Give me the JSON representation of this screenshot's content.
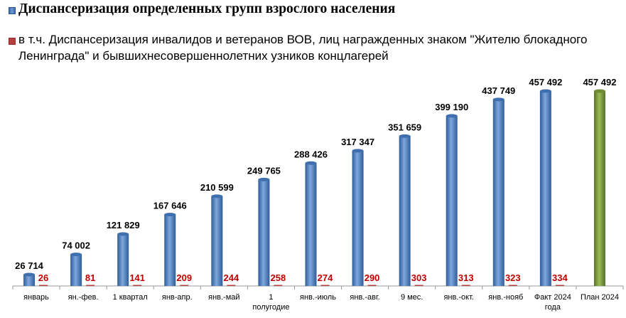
{
  "chart_data": {
    "type": "bar",
    "categories": [
      "январь",
      "ян.-фев.",
      "1 квартал",
      "янв-апр.",
      "янв.-май",
      "1 полугодие",
      "янв.-июль",
      "янв.-авг.",
      "9 мес.",
      "янв.-окт.",
      "янв.-нояб",
      "Факт 2024 года",
      "План 2024"
    ],
    "series": [
      {
        "name": "Диспансеризация определенных групп взрослого населения",
        "values": [
          26714,
          74002,
          121829,
          167646,
          210599,
          249765,
          288426,
          317347,
          351659,
          399190,
          437749,
          457492,
          457492
        ],
        "labels": [
          "26 714",
          "74 002",
          "121 829",
          "167 646",
          "210 599",
          "249 765",
          "288 426",
          "317 347",
          "351 659",
          "399 190",
          "437 749",
          "457 492",
          "457 492"
        ],
        "color": "#4a7bbf",
        "highlight_color": "#7a9a3a"
      },
      {
        "name": "в т.ч. Диспансеризация инвалидов и ветеранов ВОВ, лиц награжденных знаком \"Жителю блокадного Ленинграда\" и бывшихнесовершеннолетних  узников концлагерей",
        "values": [
          26,
          81,
          141,
          209,
          244,
          258,
          274,
          290,
          303,
          313,
          323,
          334,
          null
        ],
        "labels": [
          "26",
          "81",
          "141",
          "209",
          "244",
          "258",
          "274",
          "290",
          "303",
          "313",
          "323",
          "334",
          ""
        ],
        "color": "#b73e3e"
      }
    ],
    "tick_labels": [
      [
        "январь"
      ],
      [
        "ян.-фев."
      ],
      [
        "1 квартал"
      ],
      [
        "янв-апр."
      ],
      [
        "янв.-май"
      ],
      [
        "1",
        "полугодие"
      ],
      [
        "янв.-июль"
      ],
      [
        "янв.-авг."
      ],
      [
        "9 мес."
      ],
      [
        "янв.-окт."
      ],
      [
        "янв.-нояб"
      ],
      [
        "Факт 2024",
        "года"
      ],
      [
        "План 2024"
      ]
    ],
    "ylim": [
      0,
      470000
    ],
    "grid": false,
    "legend_position": "top-left"
  }
}
